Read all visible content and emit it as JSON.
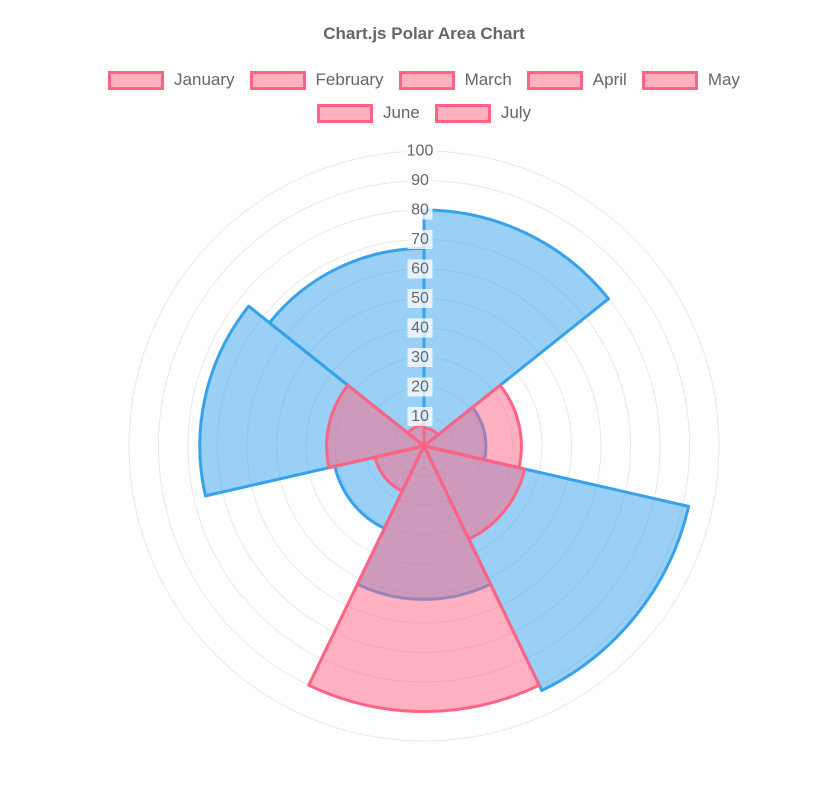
{
  "page": {
    "title": "Chart.js Polar Area Chart"
  },
  "chart_data": {
    "type": "polarArea",
    "title": "Chart.js Polar Area Chart",
    "labels": [
      "January",
      "February",
      "March",
      "April",
      "May",
      "June",
      "July"
    ],
    "datasets": [
      {
        "name": "pink-dataset",
        "backgroundColor": "rgba(255,99,132,0.5)",
        "borderColor": "#FF6384",
        "swatchFill": "#FFB1C1",
        "values": [
          6,
          33,
          35,
          90,
          17,
          33,
          7
        ]
      },
      {
        "name": "blue-dataset",
        "backgroundColor": "rgba(54,162,235,0.5)",
        "borderColor": "#36A2EB",
        "swatchFill": "#9AD0F5",
        "values": [
          80,
          21,
          92,
          52,
          31,
          76,
          67
        ]
      }
    ],
    "scale": {
      "min": 0,
      "max": 100,
      "step": 10,
      "ticks": [
        10,
        20,
        30,
        40,
        50,
        60,
        70,
        80,
        90,
        100
      ],
      "tickColor": "#666666",
      "tickBackdrop": "rgba(255,255,255,0.75)",
      "gridColor": "#E8E8E8",
      "gridOn": true
    },
    "legend": {
      "position": "top",
      "rows": [
        5,
        2
      ]
    }
  }
}
